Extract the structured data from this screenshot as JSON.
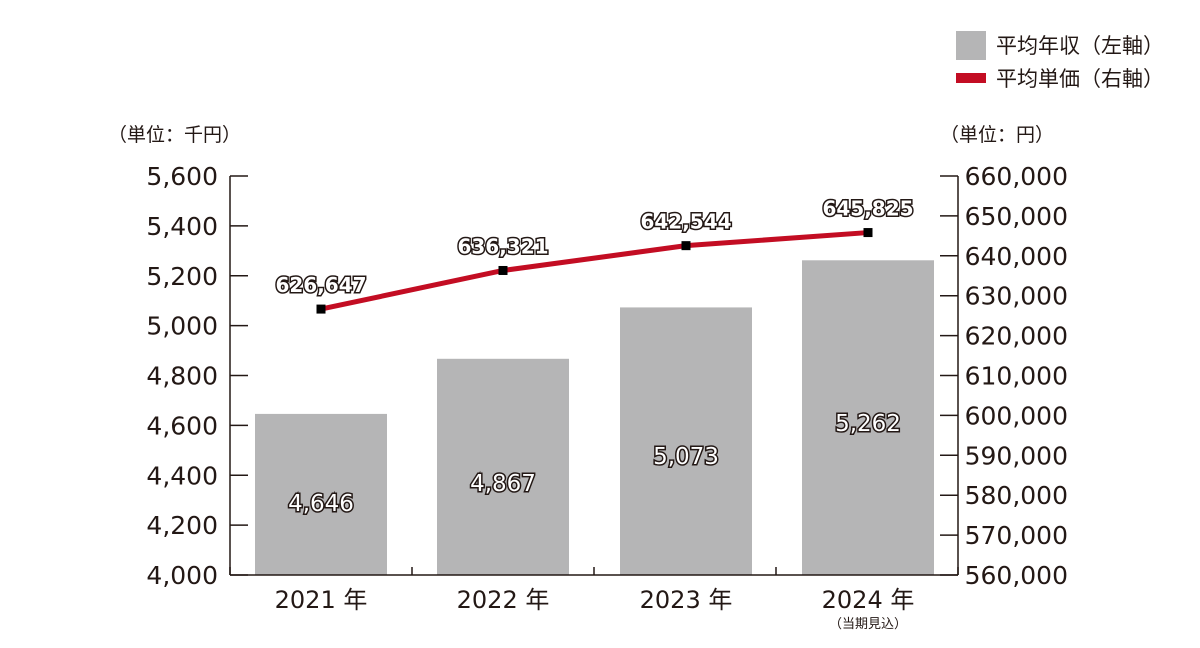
{
  "chart_data": {
    "type": "bar+line",
    "categories": [
      "2021 年",
      "2022 年",
      "2023 年",
      "2024 年"
    ],
    "category_note": {
      "index": 3,
      "text": "（当期見込）"
    },
    "series": [
      {
        "name": "平均年収（左軸）",
        "type": "bar",
        "axis": "left",
        "values": [
          4646,
          4867,
          5073,
          5262
        ],
        "value_labels": [
          "4,646",
          "4,867",
          "5,073",
          "5,262"
        ],
        "color": "#b5b5b6"
      },
      {
        "name": "平均単価（右軸）",
        "type": "line",
        "axis": "right",
        "values": [
          626647,
          636321,
          642544,
          645825
        ],
        "value_labels": [
          "626,647",
          "636,321",
          "642,544",
          "645,825"
        ],
        "color": "#c30d23"
      }
    ],
    "left_axis": {
      "unit": "（単位：千円）",
      "min": 4000,
      "max": 5600,
      "ticks": [
        "4,000",
        "4,200",
        "4,400",
        "4,600",
        "4,800",
        "5,000",
        "5,200",
        "5,400",
        "5,600"
      ]
    },
    "right_axis": {
      "unit": "（単位：円）",
      "min": 560000,
      "max": 660000,
      "ticks": [
        "560,000",
        "570,000",
        "580,000",
        "590,000",
        "600,000",
        "610,000",
        "620,000",
        "630,000",
        "640,000",
        "650,000",
        "660,000"
      ]
    },
    "legend": {
      "placement": "top-right",
      "items": [
        "平均年収（左軸）",
        "平均単価（右軸）"
      ]
    },
    "title": "",
    "grid": false
  },
  "colors": {
    "bar": "#b5b5b6",
    "line": "#c30d23",
    "axis": "#231815",
    "marker": "#000000"
  }
}
